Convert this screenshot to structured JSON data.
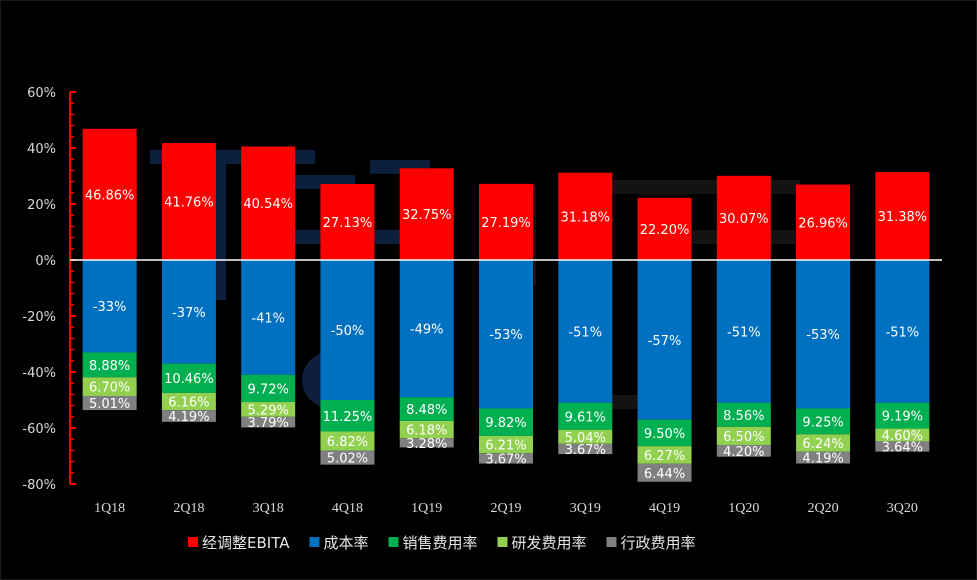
{
  "chart_data": {
    "type": "bar",
    "stacked": true,
    "categories": [
      "1Q18",
      "2Q18",
      "3Q18",
      "4Q18",
      "1Q19",
      "2Q19",
      "3Q19",
      "4Q19",
      "1Q20",
      "2Q20",
      "3Q20"
    ],
    "ylim": [
      -80,
      60
    ],
    "yticks": [
      60,
      40,
      20,
      0,
      -20,
      -40,
      -60,
      -80
    ],
    "ytick_labels": [
      "60%",
      "40%",
      "20%",
      "0%",
      "-20%",
      "-40%",
      "-60%",
      "-80%"
    ],
    "legend_position": "bottom",
    "series": [
      {
        "name": "经调整EBITA",
        "color": "#ff0000",
        "values": [
          46.86,
          41.76,
          40.54,
          27.13,
          32.75,
          27.19,
          31.18,
          22.2,
          30.07,
          26.96,
          31.38
        ],
        "labels": [
          "46.86%",
          "41.76%",
          "40.54%",
          "27.13%",
          "32.75%",
          "27.19%",
          "31.18%",
          "22.20%",
          "30.07%",
          "26.96%",
          "31.38%"
        ]
      },
      {
        "name": "成本率",
        "color": "#0070c0",
        "values": [
          -33,
          -37,
          -41,
          -50,
          -49,
          -53,
          -51,
          -57,
          -51,
          -53,
          -51
        ],
        "labels": [
          "-33%",
          "-37%",
          "-41%",
          "-50%",
          "-49%",
          "-53%",
          "-51%",
          "-57%",
          "-51%",
          "-53%",
          "-51%"
        ]
      },
      {
        "name": "销售费用率",
        "color": "#00b050",
        "values": [
          -8.88,
          -10.46,
          -9.72,
          -11.25,
          -8.48,
          -9.82,
          -9.61,
          -9.5,
          -8.56,
          -9.25,
          -9.19
        ],
        "labels": [
          "8.88%",
          "10.46%",
          "9.72%",
          "11.25%",
          "8.48%",
          "9.82%",
          "9.61%",
          "9.50%",
          "8.56%",
          "9.25%",
          "9.19%"
        ]
      },
      {
        "name": "研发费用率",
        "color": "#92d050",
        "values": [
          -6.7,
          -6.16,
          -5.29,
          -6.82,
          -6.18,
          -6.21,
          -5.04,
          -6.27,
          -6.5,
          -6.24,
          -4.6
        ],
        "labels": [
          "6.70%",
          "6.16%",
          "5.29%",
          "6.82%",
          "6.18%",
          "6.21%",
          "5.04%",
          "6.27%",
          "6.50%",
          "6.24%",
          "4.60%"
        ]
      },
      {
        "name": "行政费用率",
        "color": "#808080",
        "values": [
          -5.01,
          -4.19,
          -3.79,
          -5.02,
          -3.28,
          -3.67,
          -3.67,
          -6.44,
          -4.2,
          -4.19,
          -3.64
        ],
        "labels": [
          "5.01%",
          "4.19%",
          "3.79%",
          "5.02%",
          "3.28%",
          "3.67%",
          "3.67%",
          "6.44%",
          "4.20%",
          "4.19%",
          "3.64%"
        ]
      }
    ]
  }
}
